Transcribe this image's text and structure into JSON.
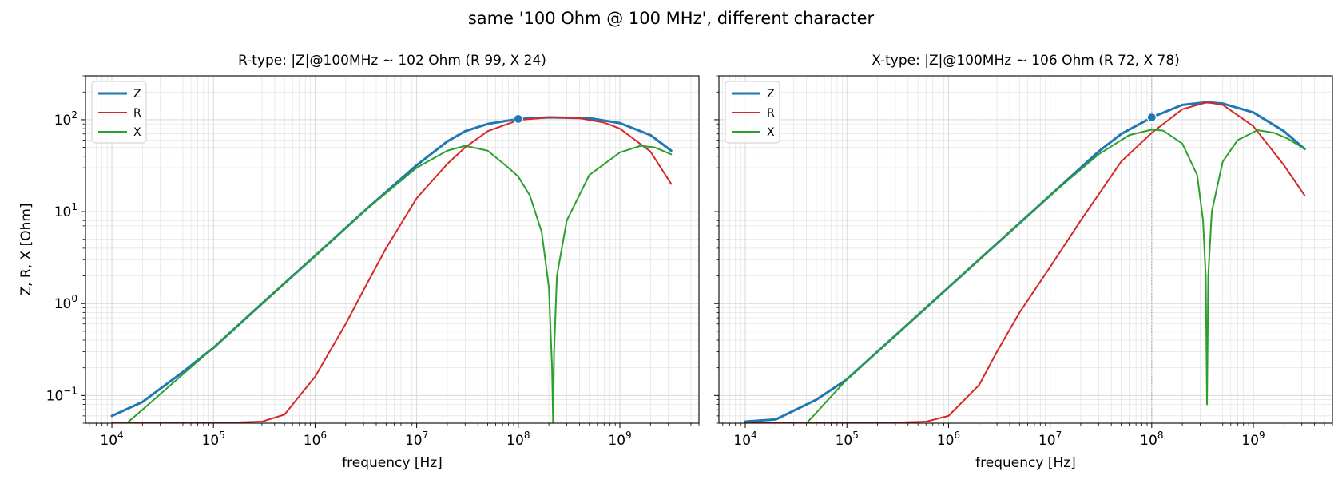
{
  "figure": {
    "suptitle": "same '100 Ohm @ 100 MHz', different character"
  },
  "colors": {
    "Z": "#1f77b4",
    "R": "#d62728",
    "X": "#2ca02c",
    "grid": "#d9d9d9",
    "marker_line": "#aaaaaa"
  },
  "chart_data": [
    {
      "type": "line",
      "title": "R-type: |Z|@100MHz ~ 102 Ohm  (R 99, X 24)",
      "xlabel": "frequency [Hz]",
      "ylabel": "Z, R, X [Ohm]",
      "xscale": "log",
      "yscale": "log",
      "xlim": [
        5500.0,
        6000000000.0
      ],
      "ylim": [
        0.05,
        300
      ],
      "grid": true,
      "legend": "upper-left",
      "x_ticks": [
        {
          "base": "10",
          "exp": "4",
          "value": 10000.0
        },
        {
          "base": "10",
          "exp": "5",
          "value": 100000.0
        },
        {
          "base": "10",
          "exp": "6",
          "value": 1000000.0
        },
        {
          "base": "10",
          "exp": "7",
          "value": 10000000.0
        },
        {
          "base": "10",
          "exp": "8",
          "value": 100000000.0
        },
        {
          "base": "10",
          "exp": "9",
          "value": 1000000000.0
        }
      ],
      "y_ticks": [
        {
          "base": "10",
          "exp": "−1",
          "value": 0.1
        },
        {
          "base": "10",
          "exp": "0",
          "value": 1
        },
        {
          "base": "10",
          "exp": "1",
          "value": 10
        },
        {
          "base": "10",
          "exp": "2",
          "value": 100
        }
      ],
      "marker": {
        "x": 100000000.0,
        "y": 102
      },
      "series": [
        {
          "name": "Z",
          "color_key": "Z",
          "width": 3,
          "points": [
            [
              10000.0,
              0.06
            ],
            [
              20000.0,
              0.085
            ],
            [
              50000.0,
              0.18
            ],
            [
              100000.0,
              0.33
            ],
            [
              300000.0,
              1.0
            ],
            [
              1000000.0,
              3.3
            ],
            [
              3000000.0,
              10
            ],
            [
              10000000.0,
              32
            ],
            [
              20000000.0,
              58
            ],
            [
              30000000.0,
              75
            ],
            [
              50000000.0,
              90
            ],
            [
              100000000.0,
              102
            ],
            [
              200000000.0,
              106
            ],
            [
              500000000.0,
              104
            ],
            [
              1000000000.0,
              92
            ],
            [
              2000000000.0,
              68
            ],
            [
              3200000000.0,
              46
            ]
          ]
        },
        {
          "name": "R",
          "color_key": "R",
          "width": 2,
          "points": [
            [
              10000.0,
              0.05
            ],
            [
              100000.0,
              0.05
            ],
            [
              300000.0,
              0.052
            ],
            [
              500000.0,
              0.062
            ],
            [
              1000000.0,
              0.16
            ],
            [
              2000000.0,
              0.6
            ],
            [
              3000000.0,
              1.4
            ],
            [
              5000000.0,
              4
            ],
            [
              10000000.0,
              14
            ],
            [
              20000000.0,
              33
            ],
            [
              30000000.0,
              50
            ],
            [
              50000000.0,
              75
            ],
            [
              100000000.0,
              99
            ],
            [
              200000000.0,
              106
            ],
            [
              400000000.0,
              104
            ],
            [
              700000000.0,
              93
            ],
            [
              1000000000.0,
              80
            ],
            [
              2000000000.0,
              45
            ],
            [
              3200000000.0,
              20
            ]
          ]
        },
        {
          "name": "X",
          "color_key": "X",
          "width": 2,
          "points": [
            [
              14000.0,
              0.05
            ],
            [
              20000.0,
              0.07
            ],
            [
              50000.0,
              0.17
            ],
            [
              100000.0,
              0.33
            ],
            [
              300000.0,
              1.0
            ],
            [
              1000000.0,
              3.3
            ],
            [
              3000000.0,
              10
            ],
            [
              10000000.0,
              30
            ],
            [
              20000000.0,
              46
            ],
            [
              30000000.0,
              52
            ],
            [
              50000000.0,
              46
            ],
            [
              80000000.0,
              30
            ],
            [
              100000000.0,
              24
            ],
            [
              130000000.0,
              15
            ],
            [
              170000000.0,
              6
            ],
            [
              200000000.0,
              1.5
            ],
            [
              215000000.0,
              0.2
            ],
            [
              220000000.0,
              0.05
            ],
            [
              225000000.0,
              0.3
            ],
            [
              240000000.0,
              2
            ],
            [
              300000000.0,
              8
            ],
            [
              500000000.0,
              25
            ],
            [
              1000000000.0,
              44
            ],
            [
              1600000000.0,
              52
            ],
            [
              2200000000.0,
              50
            ],
            [
              3200000000.0,
              42
            ]
          ]
        }
      ]
    },
    {
      "type": "line",
      "title": "X-type: |Z|@100MHz ~ 106 Ohm  (R 72, X 78)",
      "xlabel": "frequency [Hz]",
      "ylabel": "",
      "xscale": "log",
      "yscale": "log",
      "xlim": [
        5500.0,
        6000000000.0
      ],
      "ylim": [
        0.05,
        300
      ],
      "grid": true,
      "legend": "upper-left",
      "x_ticks": [
        {
          "base": "10",
          "exp": "4",
          "value": 10000.0
        },
        {
          "base": "10",
          "exp": "5",
          "value": 100000.0
        },
        {
          "base": "10",
          "exp": "6",
          "value": 1000000.0
        },
        {
          "base": "10",
          "exp": "7",
          "value": 10000000.0
        },
        {
          "base": "10",
          "exp": "8",
          "value": 100000000.0
        },
        {
          "base": "10",
          "exp": "9",
          "value": 1000000000.0
        }
      ],
      "y_ticks": [],
      "marker": {
        "x": 100000000.0,
        "y": 106
      },
      "series": [
        {
          "name": "Z",
          "color_key": "Z",
          "width": 3,
          "points": [
            [
              10000.0,
              0.052
            ],
            [
              20000.0,
              0.055
            ],
            [
              50000.0,
              0.09
            ],
            [
              100000.0,
              0.15
            ],
            [
              300000.0,
              0.45
            ],
            [
              1000000.0,
              1.5
            ],
            [
              3000000.0,
              4.5
            ],
            [
              10000000.0,
              15
            ],
            [
              30000000.0,
              45
            ],
            [
              50000000.0,
              70
            ],
            [
              100000000.0,
              106
            ],
            [
              200000000.0,
              145
            ],
            [
              350000000.0,
              155
            ],
            [
              500000000.0,
              150
            ],
            [
              1000000000.0,
              120
            ],
            [
              2000000000.0,
              75
            ],
            [
              3200000000.0,
              48
            ]
          ]
        },
        {
          "name": "R",
          "color_key": "R",
          "width": 2,
          "points": [
            [
              10000.0,
              0.05
            ],
            [
              200000.0,
              0.05
            ],
            [
              600000.0,
              0.052
            ],
            [
              1000000.0,
              0.06
            ],
            [
              2000000.0,
              0.13
            ],
            [
              3000000.0,
              0.3
            ],
            [
              5000000.0,
              0.8
            ],
            [
              10000000.0,
              2.5
            ],
            [
              20000000.0,
              8
            ],
            [
              50000000.0,
              35
            ],
            [
              100000000.0,
              72
            ],
            [
              200000000.0,
              130
            ],
            [
              350000000.0,
              155
            ],
            [
              500000000.0,
              145
            ],
            [
              1000000000.0,
              85
            ],
            [
              2000000000.0,
              32
            ],
            [
              3200000000.0,
              15
            ]
          ]
        },
        {
          "name": "X",
          "color_key": "X",
          "width": 2,
          "points": [
            [
              40000.0,
              0.05
            ],
            [
              50000.0,
              0.065
            ],
            [
              100000.0,
              0.15
            ],
            [
              300000.0,
              0.45
            ],
            [
              1000000.0,
              1.5
            ],
            [
              3000000.0,
              4.5
            ],
            [
              10000000.0,
              15
            ],
            [
              30000000.0,
              42
            ],
            [
              60000000.0,
              68
            ],
            [
              100000000.0,
              78
            ],
            [
              130000000.0,
              76
            ],
            [
              200000000.0,
              55
            ],
            [
              280000000.0,
              25
            ],
            [
              320000000.0,
              8
            ],
            [
              340000000.0,
              2
            ],
            [
              350000000.0,
              0.08
            ],
            [
              360000000.0,
              2
            ],
            [
              390000000.0,
              10
            ],
            [
              500000000.0,
              35
            ],
            [
              700000000.0,
              60
            ],
            [
              1100000000.0,
              77
            ],
            [
              1600000000.0,
              72
            ],
            [
              2200000000.0,
              62
            ],
            [
              3200000000.0,
              48
            ]
          ]
        }
      ]
    }
  ]
}
